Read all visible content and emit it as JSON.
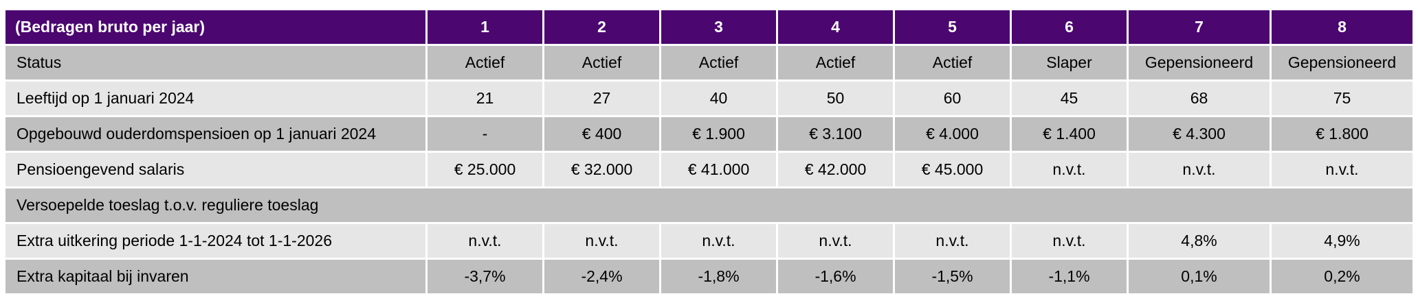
{
  "table": {
    "header": {
      "label": "(Bedragen bruto per jaar)",
      "columns": [
        "1",
        "2",
        "3",
        "4",
        "5",
        "6",
        "7",
        "8"
      ]
    },
    "rows": [
      {
        "label": "Status",
        "values": [
          "Actief",
          "Actief",
          "Actief",
          "Actief",
          "Actief",
          "Slaper",
          "Gepensioneerd",
          "Gepensioneerd"
        ]
      },
      {
        "label": "Leeftijd op 1 januari 2024",
        "values": [
          "21",
          "27",
          "40",
          "50",
          "60",
          "45",
          "68",
          "75"
        ]
      },
      {
        "label": "Opgebouwd ouderdomspensioen op 1 januari 2024",
        "values": [
          "-",
          "€ 400",
          "€ 1.900",
          "€ 3.100",
          "€ 4.000",
          "€ 1.400",
          "€ 4.300",
          "€ 1.800"
        ]
      },
      {
        "label": "Pensioengevend salaris",
        "values": [
          "€ 25.000",
          "€ 32.000",
          "€ 41.000",
          "€ 42.000",
          "€ 45.000",
          "n.v.t.",
          "n.v.t.",
          "n.v.t."
        ]
      }
    ],
    "section_label": "Versoepelde toeslag t.o.v. reguliere toeslag",
    "section_rows": [
      {
        "label": "Extra uitkering periode 1-1-2024 tot 1-1-2026",
        "values": [
          "n.v.t.",
          "n.v.t.",
          "n.v.t.",
          "n.v.t.",
          "n.v.t.",
          "n.v.t.",
          "4,8%",
          "4,9%"
        ]
      },
      {
        "label": "Extra kapitaal bij invaren",
        "values": [
          "-3,7%",
          "-2,4%",
          "-1,8%",
          "-1,6%",
          "-1,5%",
          "-1,1%",
          "0,1%",
          "0,2%"
        ]
      }
    ],
    "colors": {
      "header_background": "#4b0670",
      "header_text": "#ffffff",
      "row_dark": "#bfbfbf",
      "row_light": "#e6e6e6"
    }
  }
}
